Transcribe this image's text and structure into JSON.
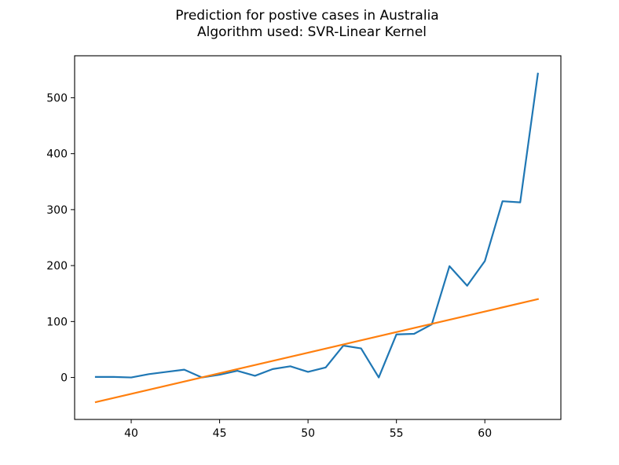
{
  "chart_data": {
    "type": "line",
    "title_line1": "Prediction for postive cases in Australia",
    "title_line2": "Algorithm used: SVR-Linear Kernel",
    "xlabel": "",
    "ylabel": "",
    "xlim": [
      36.8,
      64.3
    ],
    "ylim": [
      -75,
      575
    ],
    "x_ticks": [
      40,
      45,
      50,
      55,
      60
    ],
    "y_ticks": [
      0,
      100,
      200,
      300,
      400,
      500
    ],
    "grid": false,
    "legend": "none",
    "series": [
      {
        "color": "#1f77b4",
        "x": [
          38,
          39,
          40,
          41,
          42,
          43,
          44,
          45,
          46,
          47,
          48,
          49,
          50,
          51,
          52,
          53,
          54,
          55,
          56,
          57,
          58,
          59,
          60,
          61,
          62,
          63
        ],
        "y": [
          1,
          1,
          0,
          6,
          10,
          14,
          0,
          5,
          12,
          3,
          15,
          20,
          10,
          18,
          57,
          52,
          0,
          77,
          78,
          95,
          199,
          164,
          208,
          315,
          313,
          543
        ]
      },
      {
        "color": "#ff7f0e",
        "x": [
          38,
          63
        ],
        "y": [
          -44,
          140
        ]
      }
    ]
  }
}
